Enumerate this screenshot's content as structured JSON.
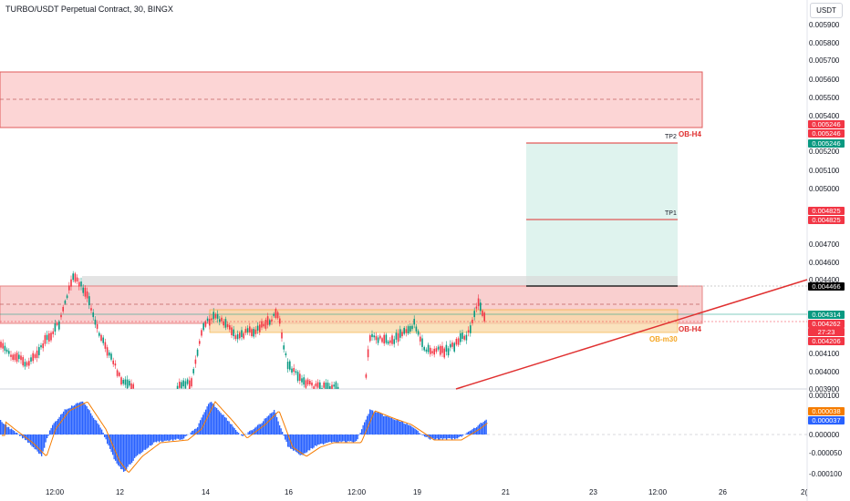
{
  "header": {
    "title": "TURBO/USDT Perpetual Contract, 30, BINGX",
    "currency": "USDT"
  },
  "price_axis": [
    "0.005900",
    "0.005800",
    "0.005700",
    "0.005600",
    "0.005500",
    "0.005400",
    "0.005200",
    "0.005100",
    "0.005000",
    "0.004700",
    "0.004600",
    "0.004400",
    "0.004100",
    "0.004000",
    "0.003900"
  ],
  "indicator_axis": [
    "0.000100",
    "0.000000",
    "-0.000050",
    "-0.000100"
  ],
  "price_tags": {
    "ob_top_1": "0.005246",
    "ob_top_2": "0.005246",
    "tp2": "0.005246",
    "tp1_a": "0.004825",
    "tp1_b": "0.004825",
    "entry": "0.004466",
    "current": "0.004314",
    "ob_low": "0.004262",
    "countdown": "27:23",
    "stop": "0.004206"
  },
  "indicator_tags": {
    "signal": "0.000038",
    "macd": "0.000037"
  },
  "annotations": {
    "ob_h4_upper": "OB-H4",
    "ob_h4_lower": "OB-H4",
    "ob_m30": "OB-m30",
    "tp1": "TP1",
    "tp2": "TP2"
  },
  "time_axis": [
    "12:00",
    "12",
    "14",
    "16",
    "12:00",
    "19",
    "21",
    "23",
    "12:00",
    "26",
    "2("
  ],
  "colors": {
    "up": "#089981",
    "down": "#f23645",
    "ob_fill": "#fcd5d5",
    "tp_fill": "#dff3ee",
    "orange": "#f5a623",
    "histogram": "#2962ff",
    "trend": "#e03030"
  }
}
